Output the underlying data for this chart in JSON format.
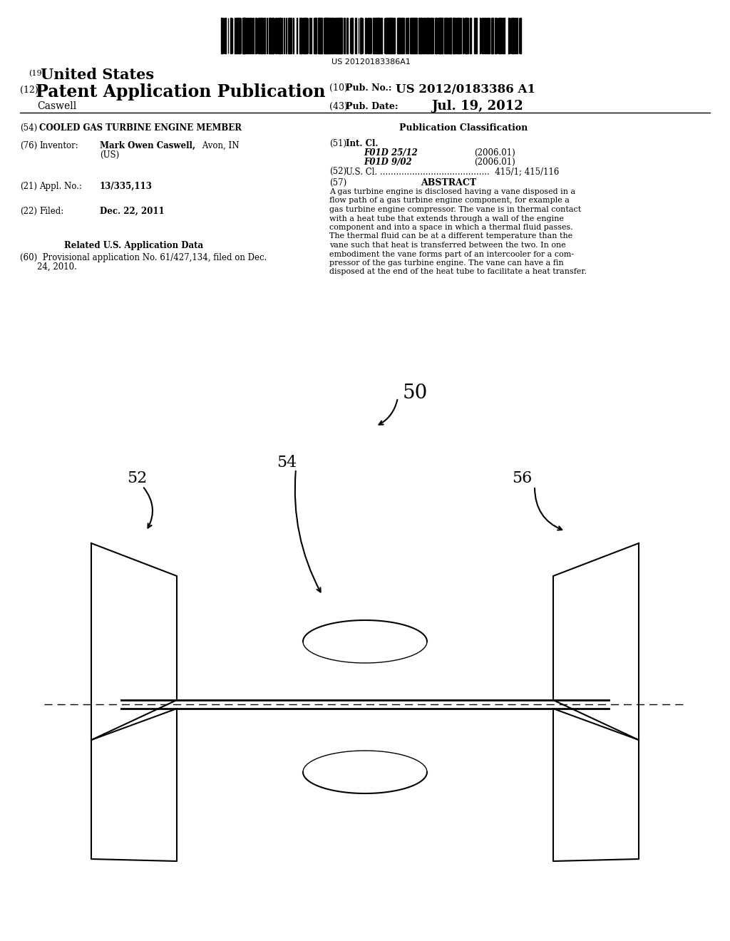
{
  "bg_color": "#ffffff",
  "barcode_text": "US 20120183386A1",
  "fig_label_50": "50",
  "fig_label_52": "52",
  "fig_label_54": "54",
  "fig_label_56": "56"
}
